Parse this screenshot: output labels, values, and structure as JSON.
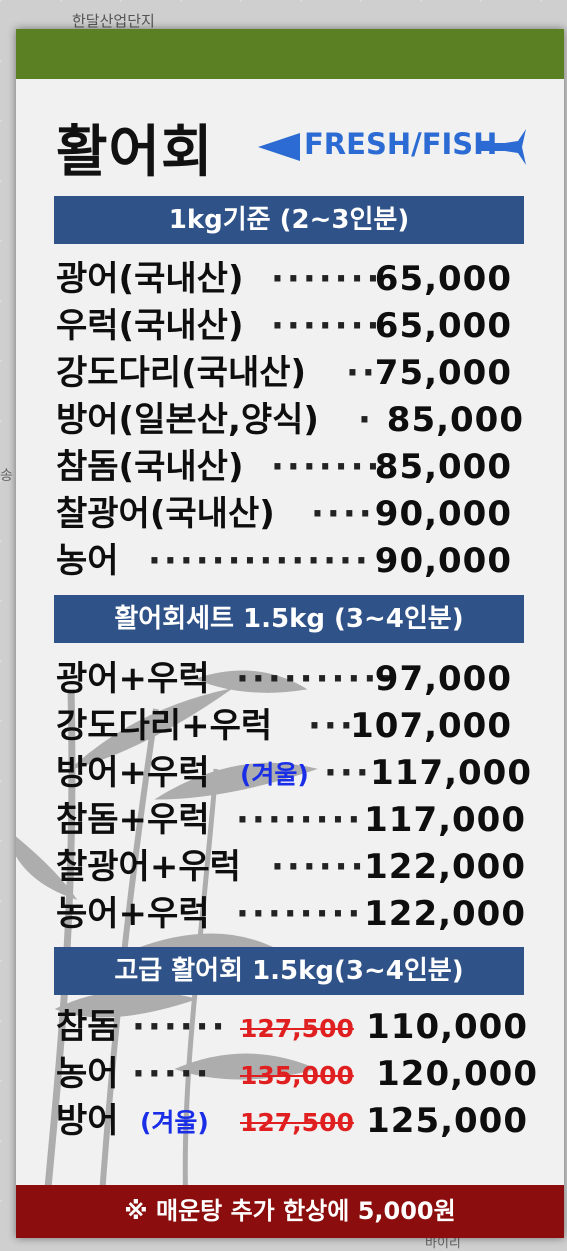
{
  "map": {
    "top_label": "한달산업단지",
    "left_label": "송",
    "bottom_label": "바이리"
  },
  "brand": {
    "title": "활어회",
    "logo_text": "FRESH/FISH",
    "logo_color": "#2b6bd3"
  },
  "colors": {
    "top_bar": "#5b7f23",
    "section_header": "#2f5288",
    "footer": "#8b0d0d",
    "note": "#1a2ee8",
    "strike": "#e02020"
  },
  "sections": [
    {
      "header": "1kg기준 (2~3인분)",
      "items": [
        {
          "name": "광어(국내산)",
          "dots": "·······",
          "price": "65,000"
        },
        {
          "name": "우럭(국내산)",
          "dots": "·······",
          "price": "65,000"
        },
        {
          "name": "강도다리(국내산)",
          "dots": "··",
          "price": "75,000"
        },
        {
          "name": "방어(일본산,양식)",
          "dots": "·",
          "price": "85,000"
        },
        {
          "name": "참돔(국내산)",
          "dots": "·······",
          "price": "85,000"
        },
        {
          "name": "찰광어(국내산)",
          "dots": "····",
          "price": "90,000"
        },
        {
          "name": "농어",
          "dots": "··············",
          "price": "90,000"
        }
      ]
    },
    {
      "header": "활어회세트 1.5kg (3~4인분)",
      "items": [
        {
          "name": "광어+우럭",
          "dots": "··········",
          "price": "97,000"
        },
        {
          "name": "강도다리+우럭",
          "dots": "···",
          "price": "107,000"
        },
        {
          "name": "방어+우럭",
          "note": "(겨울)",
          "dots": "···",
          "price": "117,000"
        },
        {
          "name": "참돔+우럭",
          "dots": "········",
          "price": "117,000"
        },
        {
          "name": "찰광어+우럭",
          "dots": "······",
          "price": "122,000"
        },
        {
          "name": "농어+우럭",
          "dots": "········",
          "price": "122,000"
        }
      ]
    },
    {
      "header": "고급 활어회 1.5kg(3~4인분)",
      "items": [
        {
          "name": "참돔",
          "dots": "······",
          "old_price": "127,500",
          "price": "110,000"
        },
        {
          "name": "농어",
          "dots": "·····",
          "old_price": "135,000",
          "price": "120,000"
        },
        {
          "name": "방어",
          "note": "(겨울)",
          "old_price": "127,500",
          "price": "125,000"
        }
      ]
    }
  ],
  "footer": {
    "text": "※ 매운탕 추가 한상에 5,000원"
  }
}
